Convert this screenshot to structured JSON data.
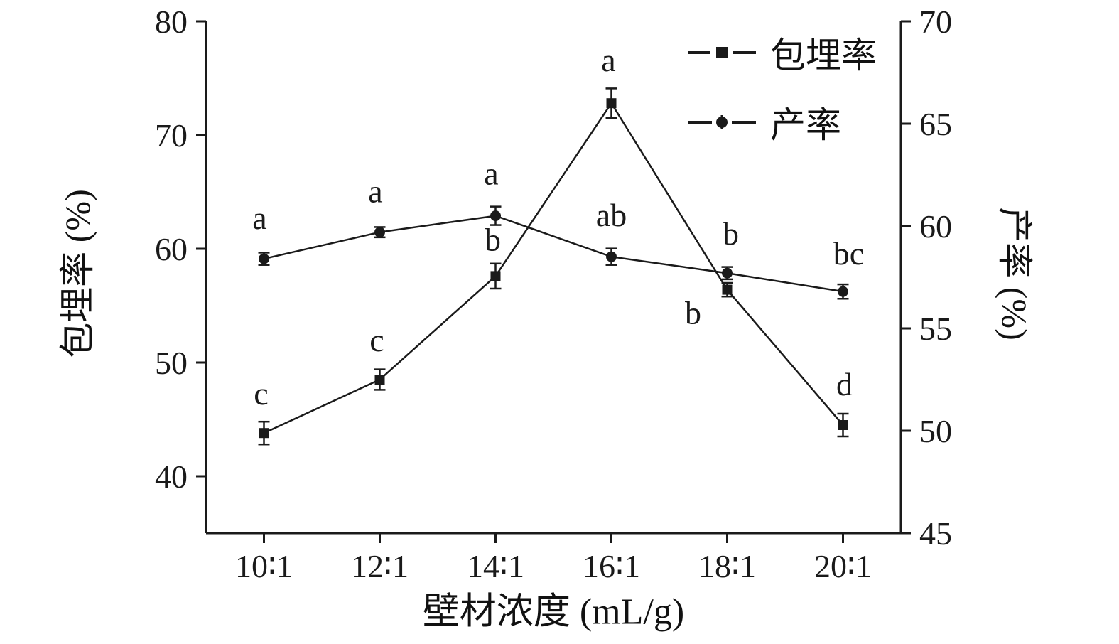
{
  "chart_data": {
    "type": "line",
    "title": "",
    "xlabel": "壁材浓度 (mL/g)",
    "x_categories": [
      "10∶1",
      "12∶1",
      "14∶1",
      "16∶1",
      "18∶1",
      "20∶1"
    ],
    "left_axis": {
      "label": "包埋率 (%)",
      "min": 35,
      "max": 80,
      "ticks": [
        40,
        50,
        60,
        70,
        80
      ]
    },
    "right_axis": {
      "label": "产率 (%)",
      "min": 45,
      "max": 70,
      "ticks": [
        45,
        50,
        55,
        60,
        65,
        70
      ]
    },
    "grid": false,
    "legend_position": "top-right-inside",
    "line_color": "#1a1a1a",
    "series": [
      {
        "name": "包埋率",
        "axis": "left",
        "marker": "square",
        "values": [
          43.8,
          48.5,
          57.6,
          72.8,
          56.4,
          44.5
        ],
        "errors": [
          1.0,
          0.9,
          1.1,
          1.3,
          0.6,
          1.0
        ],
        "point_labels": [
          "c",
          "c",
          "b",
          "a",
          "b",
          "d"
        ],
        "label_offsets": [
          [
            -4,
            -40
          ],
          [
            -4,
            -40
          ],
          [
            -4,
            -36
          ],
          [
            -4,
            -45
          ],
          [
            -48,
            48
          ],
          [
            2,
            -42
          ]
        ]
      },
      {
        "name": "产率",
        "axis": "right",
        "marker": "circle",
        "values": [
          58.4,
          59.7,
          60.5,
          58.5,
          57.7,
          56.8
        ],
        "errors": [
          0.3,
          0.25,
          0.45,
          0.4,
          0.3,
          0.35
        ],
        "point_labels": [
          "a",
          "a",
          "a",
          "ab",
          "b",
          "bc"
        ],
        "label_offsets": [
          [
            -6,
            -42
          ],
          [
            -6,
            -42
          ],
          [
            -6,
            -44
          ],
          [
            0,
            -43
          ],
          [
            5,
            -40
          ],
          [
            8,
            -38
          ]
        ]
      }
    ]
  }
}
